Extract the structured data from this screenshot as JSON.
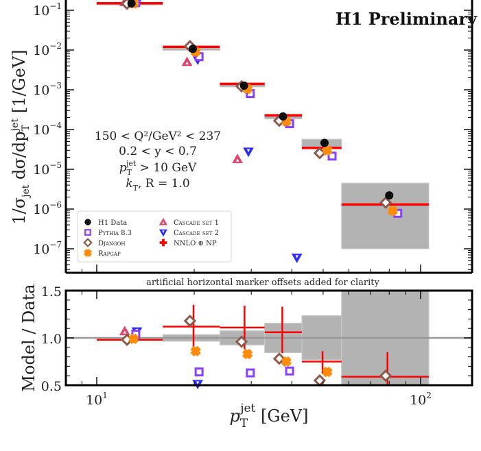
{
  "chart_data": [
    {
      "type": "scatter",
      "panel": "main",
      "title": "H1 Preliminary",
      "xlabel": "p_T^jet [GeV]",
      "ylabel": "1/σ_jet dσ/dp_T^jet [1/GeV]",
      "xscale": "log",
      "yscale": "log",
      "xlim": [
        7.95,
        144
      ],
      "ylim": [
        6e-08,
        0.25
      ],
      "ytick_labels": [
        "10^-1",
        "10^-2",
        "10^-3",
        "10^-4",
        "10^-5",
        "10^-6",
        "10^-7"
      ],
      "ytick_values": [
        0.1,
        0.01,
        0.001,
        0.0001,
        1e-05,
        1e-06,
        1e-07
      ],
      "bin_edges": [
        10,
        16,
        24,
        33,
        43,
        57,
        106
      ],
      "annotations": [
        "150 < Q²/GeV² < 237",
        "0.2 < y < 0.7",
        "p_T^jet > 10 GeV",
        "k_T, R = 1.0"
      ],
      "legend_position": "lower-left",
      "series": [
        {
          "name": "H1 Data",
          "marker": "filled-circle",
          "color": "#000000",
          "x": [
            12.8,
            19.8,
            28.5,
            37.6,
            50.5,
            80
          ],
          "values": [
            0.149,
            0.0107,
            0.00127,
            0.000214,
            4.6e-05,
            2.2e-06
          ],
          "syst_band_low": [
            0.145,
            0.0104,
            0.00118,
            0.000185,
            3.55e-05,
            1e-07
          ],
          "syst_band_high": [
            0.153,
            0.0111,
            0.00137,
            0.000244,
            5.7e-05,
            4.5e-06
          ]
        },
        {
          "name": "Pythia 8.3",
          "marker": "open-square",
          "color": "#8a3ffc",
          "x": [
            13.2,
            20.7,
            29.8,
            39.4,
            53.3,
            85
          ],
          "values": [
            0.155,
            0.0068,
            0.0008,
            0.00014,
            2.15e-05,
            7.8e-07
          ]
        },
        {
          "name": "Djangoh",
          "marker": "open-diamond",
          "color": "#8b5a4b",
          "x": [
            12.4,
            19.4,
            28.0,
            36.6,
            48.8,
            78
          ],
          "values": [
            0.146,
            0.0125,
            0.00122,
            0.000166,
            2.55e-05,
            1.45e-06
          ]
        },
        {
          "name": "Rapgap",
          "marker": "filled-cross",
          "color": "#ff8c0a",
          "x": [
            13.0,
            20.2,
            29.2,
            38.5,
            51.5,
            82
          ],
          "values": [
            0.148,
            0.009,
            0.00105,
            0.00016,
            3e-05,
            9e-07
          ]
        },
        {
          "name": "Cascade set 1",
          "marker": "open-triangle-up",
          "color": "#e0456e",
          "x": [
            12.2,
            19.0,
            27.2
          ],
          "values": [
            0.16,
            0.005,
            1.8e-05
          ]
        },
        {
          "name": "Cascade set 2",
          "marker": "open-triangle-down",
          "color": "#2e2ef5",
          "x": [
            13.3,
            20.5,
            29.4,
            41.5
          ],
          "values": [
            0.158,
            0.0058,
            2.8e-05,
            6e-08
          ]
        },
        {
          "name": "NNLO ⊕ NP",
          "marker": "red-cross",
          "color": "#ff0000",
          "values": [
            0.15,
            0.012,
            0.00141,
            0.000227,
            3.45e-05,
            1.3e-06
          ]
        }
      ]
    },
    {
      "type": "scatter",
      "panel": "ratio",
      "xlabel": "p_T^jet [GeV]",
      "ylabel": "Model / Data",
      "xscale": "log",
      "xlim": [
        7.95,
        144
      ],
      "ylim": [
        0.5,
        1.5
      ],
      "ytick_labels": [
        "0.5",
        "1.0",
        "1.5"
      ],
      "ytick_values": [
        0.5,
        1.0,
        1.5
      ],
      "xtick_labels": [
        "10^1",
        "10^2"
      ],
      "xtick_values": [
        10,
        100
      ],
      "caption": "artificial horizontal marker offsets added for clarity",
      "bin_edges": [
        10,
        16,
        24,
        33,
        43,
        57,
        106
      ],
      "data_band_low": [
        0.975,
        0.965,
        0.925,
        0.845,
        0.77,
        0.3
      ],
      "data_band_high": [
        1.025,
        1.035,
        1.075,
        1.155,
        1.235,
        1.7
      ],
      "series": [
        {
          "name": "Pythia 8.3",
          "x": [
            13.2,
            20.7,
            29.8,
            39.4
          ],
          "values": [
            1.04,
            0.64,
            0.63,
            0.65
          ]
        },
        {
          "name": "Djangoh",
          "x": [
            12.4,
            19.4,
            28.0,
            36.6,
            48.8,
            78
          ],
          "values": [
            0.98,
            1.18,
            0.96,
            0.78,
            0.55,
            0.6
          ]
        },
        {
          "name": "Rapgap",
          "x": [
            13.0,
            20.2,
            29.2,
            38.5,
            51.5
          ],
          "values": [
            0.99,
            0.86,
            0.83,
            0.75,
            0.64
          ]
        },
        {
          "name": "Cascade set 1",
          "x": [
            12.2
          ],
          "values": [
            1.07
          ]
        },
        {
          "name": "Cascade set 2",
          "x": [
            13.3,
            20.5
          ],
          "values": [
            1.07,
            0.51
          ]
        },
        {
          "name": "NNLO ⊕ NP",
          "x": [
            12.6,
            19.9,
            28.6,
            37.4,
            49.8,
            79
          ],
          "values": [
            0.98,
            1.12,
            1.11,
            1.06,
            0.75,
            0.59
          ],
          "err_low": [
            0.98,
            0.83,
            0.88,
            0.84,
            0.62,
            0.42
          ],
          "err_high": [
            0.98,
            1.35,
            1.34,
            1.33,
            0.86,
            0.85
          ]
        }
      ]
    }
  ],
  "legend": {
    "items": [
      {
        "label": "H1 Data",
        "marker": "filled-circle",
        "color": "#000000"
      },
      {
        "label": "Pythia 8.3",
        "marker": "open-square",
        "color": "#8a3ffc"
      },
      {
        "label": "Djangoh",
        "marker": "open-diamond",
        "color": "#8b5a4b"
      },
      {
        "label": "Rapgap",
        "marker": "filled-cross",
        "color": "#ff8c0a"
      },
      {
        "label": "Cascade set 1",
        "marker": "open-triangle-up",
        "color": "#e0456e"
      },
      {
        "label": "Cascade set 2",
        "marker": "open-triangle-down",
        "color": "#2e2ef5"
      },
      {
        "label": "NNLO ⊕ NP",
        "marker": "red-cross",
        "color": "#ff0000"
      }
    ]
  },
  "labels": {
    "title": "H1 Preliminary",
    "y_main_prefix": "1/σ",
    "y_main_sub": "jet",
    "y_main_mid": " dσ/dp",
    "y_main_sub2": "T",
    "y_main_sup2": "jet",
    "y_main_suffix": " [1/GeV]",
    "y_ratio": "Model / Data",
    "x_p": "p",
    "x_sub": "T",
    "x_sup": "jet",
    "x_unit": " [GeV]",
    "caption": "artificial horizontal marker offsets added for clarity",
    "ann1": "150 < Q²/GeV² < 237",
    "ann2": "0.2 < y < 0.7",
    "ann3_p": "p",
    "ann3_sub": "T",
    "ann3_sup": "jet",
    "ann3_rest": " > 10 GeV",
    "ann4": "k",
    "ann4_sub": "T",
    "ann4_rest": ", R = 1.0",
    "x_tick_10": "10",
    "x_tick_10_exp": "1",
    "x_tick_100": "10",
    "x_tick_100_exp": "2"
  },
  "colors": {
    "band": "#b3b3b3",
    "band_edge": "#c8c8c8",
    "unity": "#999999",
    "theory": "#ff0000"
  }
}
